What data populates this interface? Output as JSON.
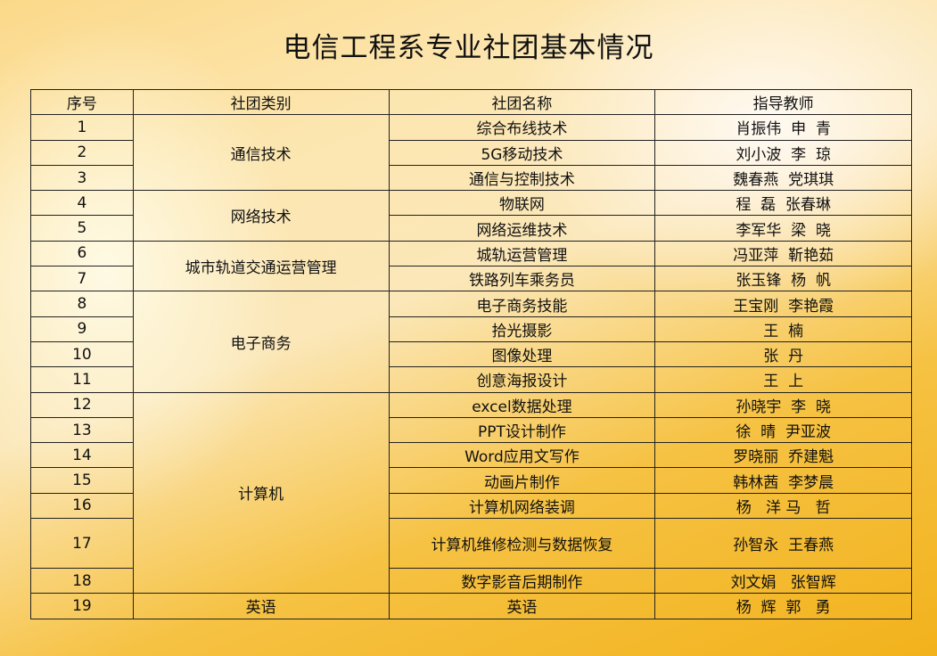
{
  "title": "电信工程系专业社团基本情况",
  "headers": [
    "序号",
    "社团类别",
    "社团名称",
    "指导教师"
  ],
  "rows": [
    {
      "no": "1",
      "category": "通信技术",
      "span": 3,
      "name": "综合布线技术",
      "teacher": "肖振伟  申  青"
    },
    {
      "no": "2",
      "name": "5G移动技术",
      "teacher": "刘小波  李  琼"
    },
    {
      "no": "3",
      "name": "通信与控制技术",
      "teacher": "魏春燕  党琪琪"
    },
    {
      "no": "4",
      "category": "网络技术",
      "span": 2,
      "name": "物联网",
      "teacher": "程  磊  张春琳"
    },
    {
      "no": "5",
      "name": "网络运维技术",
      "teacher": "李军华  梁  晓"
    },
    {
      "no": "6",
      "category": "城市轨道交通运营管理",
      "span": 2,
      "name": "城轨运营管理",
      "teacher": "冯亚萍  靳艳茹"
    },
    {
      "no": "7",
      "name": "铁路列车乘务员",
      "teacher": "张玉锋  杨  帆"
    },
    {
      "no": "8",
      "category": "电子商务",
      "span": 4,
      "name": "电子商务技能",
      "teacher": "王宝刚  李艳霞"
    },
    {
      "no": "9",
      "name": "拾光摄影",
      "teacher": "王  楠"
    },
    {
      "no": "10",
      "name": "图像处理",
      "teacher": "张  丹"
    },
    {
      "no": "11",
      "name": "创意海报设计",
      "teacher": "王  上"
    },
    {
      "no": "12",
      "category": "计算机",
      "span": 7,
      "name": "excel数据处理",
      "teacher": "孙晓宇  李  晓"
    },
    {
      "no": "13",
      "name": "PPT设计制作",
      "teacher": "徐  晴  尹亚波"
    },
    {
      "no": "14",
      "name": "Word应用文写作",
      "teacher": "罗晓丽  乔建魁"
    },
    {
      "no": "15",
      "name": "动画片制作",
      "teacher": "韩林茜  李梦晨"
    },
    {
      "no": "16",
      "name": "计算机网络装调",
      "teacher": "杨   洋 马   哲"
    },
    {
      "no": "17",
      "name": "计算机维修检测与数据恢复",
      "teacher": "孙智永  王春燕",
      "tall": true
    },
    {
      "no": "18",
      "name": "数字影音后期制作",
      "teacher": "刘文娟   张智辉"
    },
    {
      "no": "19",
      "category": "英语",
      "span": 1,
      "name": "英语",
      "teacher": "杨  辉  郭   勇"
    }
  ]
}
